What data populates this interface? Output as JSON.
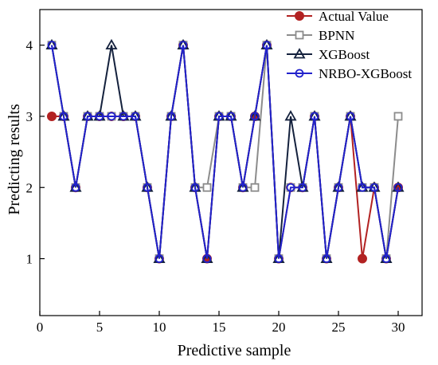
{
  "chart_data": {
    "type": "line",
    "xlabel": "Predictive sample",
    "ylabel": "Predicting results",
    "xlim": [
      0,
      32
    ],
    "ylim": [
      0.2,
      4.5
    ],
    "xticks": [
      0,
      5,
      10,
      15,
      20,
      25,
      30
    ],
    "yticks": [
      1,
      2,
      3,
      4
    ],
    "grid": false,
    "legend_position": "top-right",
    "x": [
      1,
      2,
      3,
      4,
      5,
      6,
      7,
      8,
      9,
      10,
      11,
      12,
      13,
      14,
      15,
      16,
      17,
      18,
      19,
      20,
      21,
      22,
      23,
      24,
      25,
      26,
      27,
      28,
      29,
      30
    ],
    "series": [
      {
        "name": "Actual Value",
        "color": "#b22222",
        "marker": "filled-circle",
        "values": [
          3,
          3,
          2,
          3,
          3,
          3,
          3,
          3,
          2,
          1,
          3,
          4,
          2,
          1,
          3,
          3,
          2,
          3,
          4,
          1,
          2,
          2,
          3,
          1,
          2,
          3,
          1,
          2,
          1,
          2
        ]
      },
      {
        "name": "BPNN",
        "color": "#8c8c8c",
        "marker": "open-square",
        "values": [
          4,
          3,
          2,
          3,
          3,
          3,
          3,
          3,
          2,
          1,
          3,
          4,
          2,
          2,
          3,
          3,
          2,
          2,
          4,
          1,
          2,
          2,
          3,
          1,
          2,
          3,
          2,
          2,
          1,
          3
        ]
      },
      {
        "name": "XGBoost",
        "color": "#14213d",
        "marker": "open-triangle",
        "values": [
          4,
          3,
          2,
          3,
          3,
          4,
          3,
          3,
          2,
          1,
          3,
          4,
          2,
          1,
          3,
          3,
          2,
          3,
          4,
          1,
          3,
          2,
          3,
          1,
          2,
          3,
          2,
          2,
          1,
          2
        ]
      },
      {
        "name": "NRBO-XGBoost",
        "color": "#2222cc",
        "marker": "open-circle",
        "values": [
          4,
          3,
          2,
          3,
          3,
          3,
          3,
          3,
          2,
          1,
          3,
          4,
          2,
          1,
          3,
          3,
          2,
          3,
          4,
          1,
          2,
          2,
          3,
          1,
          2,
          3,
          2,
          2,
          1,
          2
        ]
      }
    ]
  }
}
